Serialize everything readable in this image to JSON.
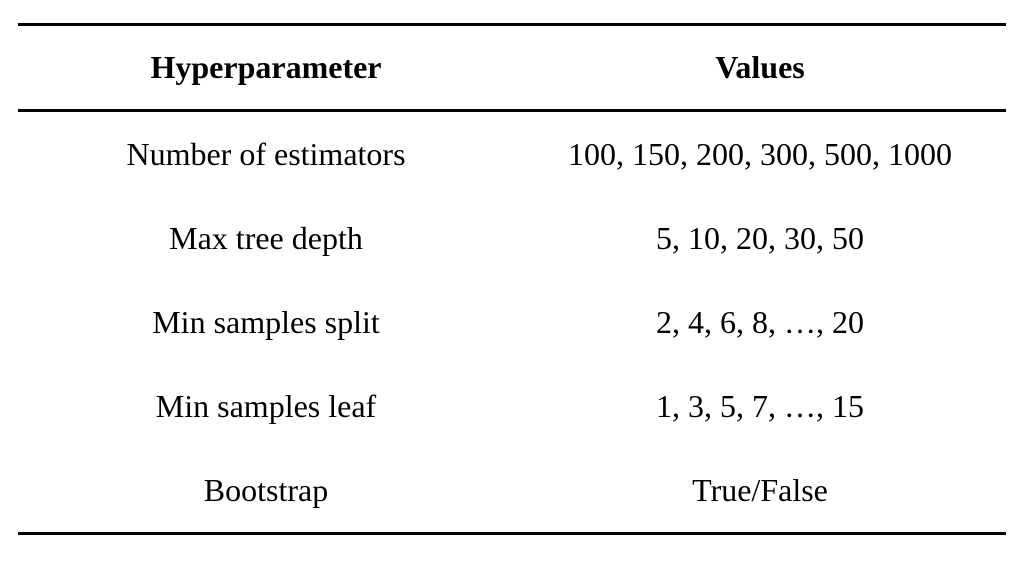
{
  "table": {
    "headers": [
      "Hyperparameter",
      "Values"
    ],
    "rows": [
      [
        "Number of estimators",
        "100, 150, 200, 300, 500, 1000"
      ],
      [
        "Max tree depth",
        "5, 10, 20, 30, 50"
      ],
      [
        "Min samples split",
        "2, 4, 6, 8, …, 20"
      ],
      [
        "Min samples leaf",
        "1, 3, 5, 7, …, 15"
      ],
      [
        "Bootstrap",
        "True/False"
      ]
    ]
  }
}
